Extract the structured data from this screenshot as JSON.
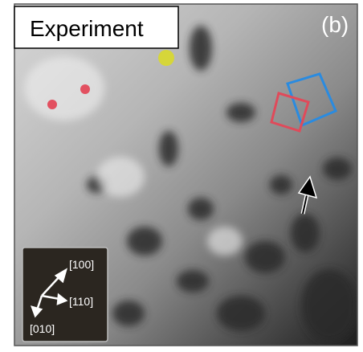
{
  "label": "Experiment",
  "panel": "(b)",
  "directions": [
    "[100]",
    "[110]",
    "[010]"
  ]
}
